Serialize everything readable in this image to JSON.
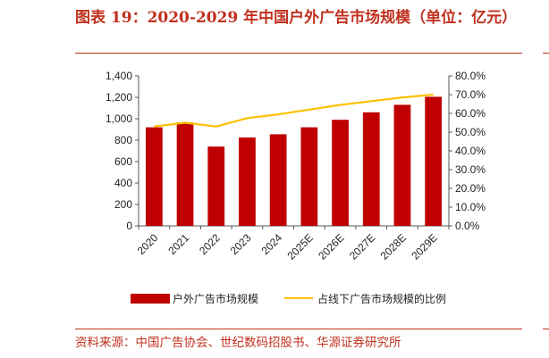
{
  "figure": {
    "title": "图表 19：2020-2029 年中国户外广告市场规模（单位：亿元）",
    "source": "资料来源：中国广告协会、世纪数码招股书、华源证券研究所"
  },
  "chart_data": {
    "type": "bar",
    "categories": [
      "2020",
      "2021",
      "2022",
      "2023",
      "2024",
      "2025E",
      "2026E",
      "2027E",
      "2028E",
      "2029E"
    ],
    "series": [
      {
        "name": "户外广告市场规模",
        "type": "bar",
        "axis": "left",
        "color": "#c00000",
        "values": [
          920,
          965,
          740,
          825,
          855,
          920,
          990,
          1060,
          1130,
          1205
        ]
      },
      {
        "name": "占线下广告市场规模的比例",
        "type": "line",
        "axis": "right",
        "color": "#ffc000",
        "values": [
          0.53,
          0.55,
          0.53,
          0.575,
          0.595,
          0.62,
          0.645,
          0.665,
          0.685,
          0.7
        ]
      }
    ],
    "y_left": {
      "lim": [
        0,
        1400
      ],
      "ticks": [
        0,
        200,
        400,
        600,
        800,
        1000,
        1200,
        1400
      ],
      "tick_labels": [
        "0",
        "200",
        "400",
        "600",
        "800",
        "1,000",
        "1,200",
        "1,400"
      ]
    },
    "y_right": {
      "lim": [
        0,
        0.8
      ],
      "ticks": [
        0,
        0.1,
        0.2,
        0.3,
        0.4,
        0.5,
        0.6,
        0.7,
        0.8
      ],
      "tick_labels": [
        "0.0%",
        "10.0%",
        "20.0%",
        "30.0%",
        "40.0%",
        "50.0%",
        "60.0%",
        "70.0%",
        "80.0%"
      ]
    },
    "grid": false,
    "legend": "bottom"
  }
}
